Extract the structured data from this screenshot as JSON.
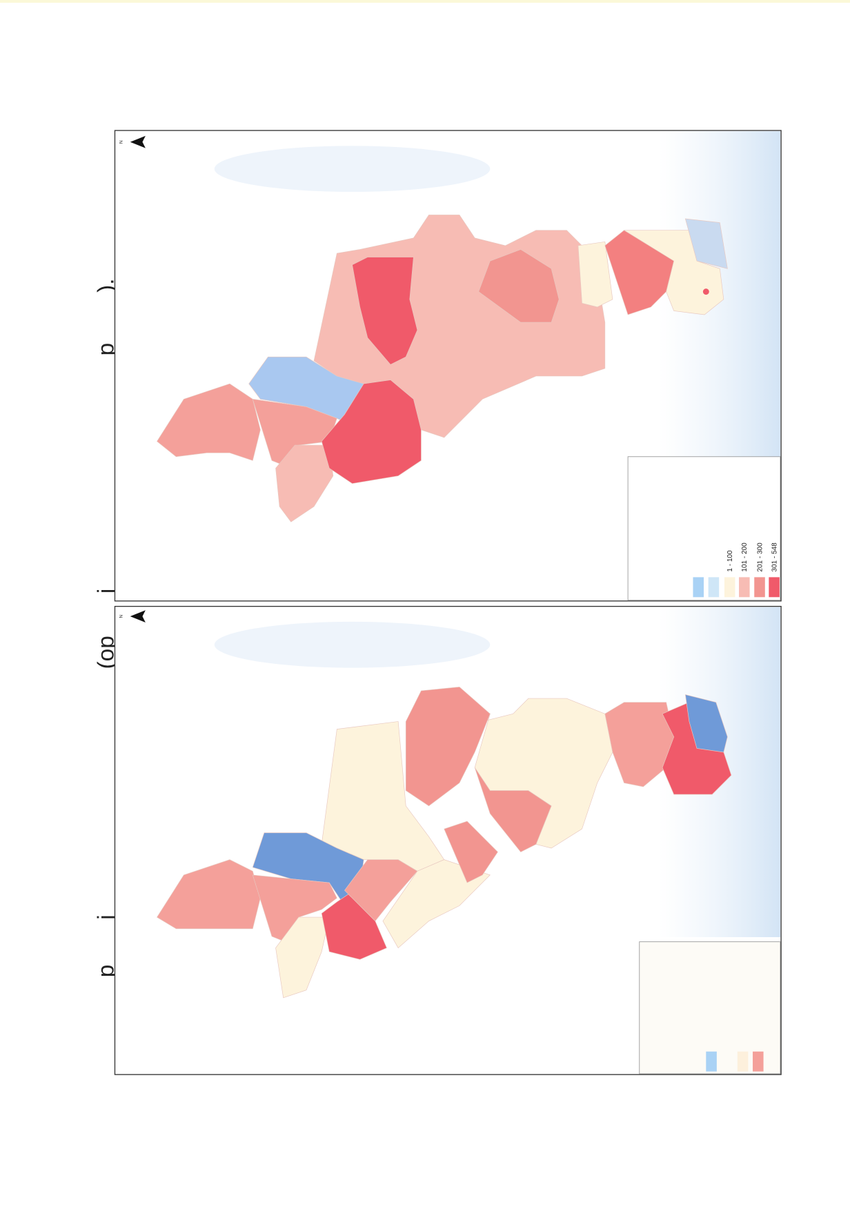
{
  "header": {
    "fragments": [
      "p",
      "j",
      "(op",
      "j",
      "p",
      ")."
    ]
  },
  "maps": [
    {
      "north_label": "N",
      "legend": {
        "labels": [
          "1 - 100",
          "101 - 200",
          "201 - 300",
          "301 - 548"
        ]
      }
    },
    {
      "north_label": "N"
    }
  ]
}
